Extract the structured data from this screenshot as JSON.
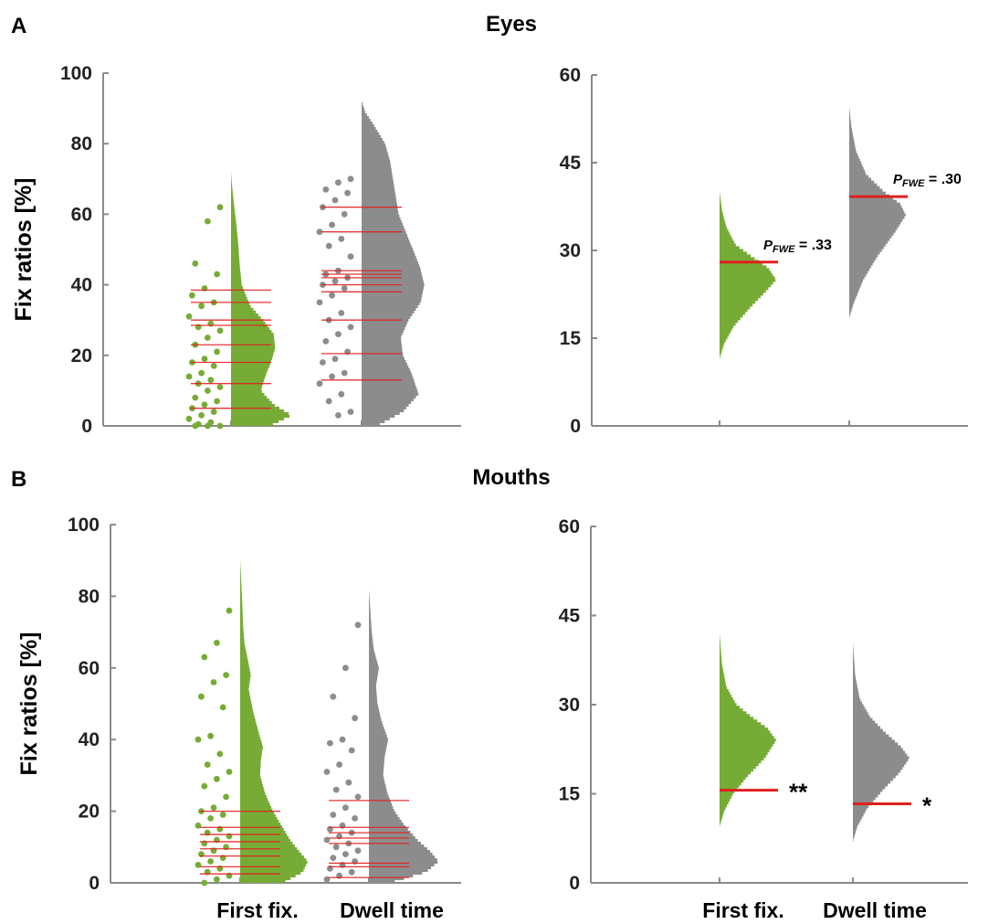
{
  "colors": {
    "green": "#76ac35",
    "gray": "#8c8c8c",
    "red": "#e0201f",
    "axis": "#8a8a8a"
  },
  "chart_data": [
    {
      "id": "A-left",
      "panel": "A",
      "title": "Eyes",
      "type": "raincloud",
      "ylabel": "Fix ratios [%]",
      "ylim": [
        0,
        100
      ],
      "yticks": [
        0,
        20,
        40,
        60,
        80,
        100
      ],
      "categories": [
        "First fix.",
        "Dwell time"
      ],
      "show_xticklabels": false,
      "series": [
        {
          "color": "green",
          "points": [
            62,
            58,
            46,
            43,
            39,
            37,
            35,
            34,
            31,
            29,
            28,
            27,
            25,
            23,
            21,
            19,
            18,
            17,
            15,
            14,
            13,
            12,
            11,
            10,
            8,
            7,
            6,
            5,
            4,
            3,
            2,
            1,
            0.5,
            0,
            0,
            0
          ],
          "lines": [
            38.5,
            35,
            30,
            28.5,
            23,
            18,
            12,
            5
          ],
          "density": [
            [
              0,
              0.55
            ],
            [
              3,
              0.85
            ],
            [
              6,
              0.6
            ],
            [
              10,
              0.42
            ],
            [
              14,
              0.48
            ],
            [
              18,
              0.56
            ],
            [
              22,
              0.62
            ],
            [
              26,
              0.6
            ],
            [
              30,
              0.45
            ],
            [
              34,
              0.27
            ],
            [
              40,
              0.15
            ],
            [
              46,
              0.12
            ],
            [
              52,
              0.1
            ],
            [
              58,
              0.07
            ],
            [
              64,
              0.035
            ],
            [
              69,
              0.01
            ],
            [
              72,
              0
            ]
          ]
        },
        {
          "color": "gray",
          "points": [
            70,
            69,
            67,
            66,
            64,
            62,
            60,
            57,
            55,
            53,
            51,
            48,
            44,
            43,
            42,
            41,
            40,
            39,
            37,
            35,
            32,
            30,
            28,
            26,
            24,
            21,
            19,
            18,
            15,
            14,
            12,
            9,
            7,
            4,
            3
          ],
          "lines": [
            62,
            55,
            44,
            43,
            42,
            40,
            38,
            30,
            20.5,
            13
          ],
          "density": [
            [
              0,
              0.22
            ],
            [
              4,
              0.58
            ],
            [
              9,
              0.8
            ],
            [
              15,
              0.7
            ],
            [
              20,
              0.58
            ],
            [
              25,
              0.55
            ],
            [
              30,
              0.66
            ],
            [
              35,
              0.83
            ],
            [
              40,
              0.88
            ],
            [
              45,
              0.82
            ],
            [
              50,
              0.72
            ],
            [
              55,
              0.62
            ],
            [
              60,
              0.52
            ],
            [
              65,
              0.48
            ],
            [
              70,
              0.44
            ],
            [
              75,
              0.4
            ],
            [
              80,
              0.33
            ],
            [
              85,
              0.18
            ],
            [
              89,
              0.05
            ],
            [
              92,
              0
            ]
          ]
        }
      ]
    },
    {
      "id": "A-right",
      "panel": "A",
      "type": "distribution",
      "ylim": [
        0,
        60
      ],
      "yticks": [
        0,
        15,
        30,
        45,
        60
      ],
      "categories": [
        "First fix.",
        "Dwell time"
      ],
      "show_xticklabels": false,
      "series": [
        {
          "color": "green",
          "observed": 28.0,
          "annotation": {
            "p_label": "P",
            "p_sub": "FWE",
            "p_value": "= .33"
          },
          "density": [
            [
              11.5,
              0
            ],
            [
              14,
              0.08
            ],
            [
              17,
              0.25
            ],
            [
              20,
              0.52
            ],
            [
              23,
              0.82
            ],
            [
              25,
              1.0
            ],
            [
              27,
              0.86
            ],
            [
              29,
              0.56
            ],
            [
              31,
              0.28
            ],
            [
              34,
              0.12
            ],
            [
              37,
              0.04
            ],
            [
              40,
              0
            ]
          ]
        },
        {
          "color": "gray",
          "observed": 39.2,
          "annotation": {
            "p_label": "P",
            "p_sub": "FWE",
            "p_value": "= .30"
          },
          "density": [
            [
              18.5,
              0
            ],
            [
              21,
              0.08
            ],
            [
              25,
              0.25
            ],
            [
              29,
              0.5
            ],
            [
              33,
              0.8
            ],
            [
              36,
              1.0
            ],
            [
              38,
              0.9
            ],
            [
              40,
              0.62
            ],
            [
              43,
              0.3
            ],
            [
              47,
              0.12
            ],
            [
              51,
              0.04
            ],
            [
              54.5,
              0
            ]
          ]
        }
      ]
    },
    {
      "id": "B-left",
      "panel": "B",
      "title": "Mouths",
      "type": "raincloud",
      "ylabel": "Fix ratios [%]",
      "ylim": [
        0,
        100
      ],
      "yticks": [
        0,
        20,
        40,
        60,
        80,
        100
      ],
      "categories": [
        "First fix.",
        "Dwell time"
      ],
      "show_xticklabels": true,
      "series": [
        {
          "color": "green",
          "points": [
            76,
            67,
            63,
            58,
            56,
            52,
            49,
            41,
            40,
            36,
            33,
            31,
            29,
            27,
            24,
            21,
            20,
            19,
            18,
            16,
            15,
            14,
            13,
            12,
            11,
            10,
            9,
            8,
            7,
            6,
            5,
            4,
            3,
            2,
            1,
            0
          ],
          "lines": [
            20,
            15.5,
            13.5,
            11.5,
            9.5,
            7.5,
            4.5,
            2.5
          ],
          "density": [
            [
              0,
              0.6
            ],
            [
              3,
              0.88
            ],
            [
              6,
              0.95
            ],
            [
              9,
              0.82
            ],
            [
              12,
              0.7
            ],
            [
              16,
              0.58
            ],
            [
              20,
              0.46
            ],
            [
              25,
              0.35
            ],
            [
              30,
              0.28
            ],
            [
              34,
              0.29
            ],
            [
              38,
              0.32
            ],
            [
              42,
              0.26
            ],
            [
              48,
              0.18
            ],
            [
              54,
              0.12
            ],
            [
              58,
              0.15
            ],
            [
              62,
              0.11
            ],
            [
              67,
              0.06
            ],
            [
              72,
              0.04
            ],
            [
              78,
              0.03
            ],
            [
              84,
              0.015
            ],
            [
              90,
              0
            ]
          ]
        },
        {
          "color": "gray",
          "points": [
            72,
            60,
            52,
            46,
            40,
            39,
            37,
            33,
            31,
            28,
            26,
            24,
            21,
            19,
            18,
            16,
            15,
            14,
            13,
            12,
            11,
            10,
            9,
            8,
            7,
            6,
            5,
            4,
            3,
            2,
            1
          ],
          "lines": [
            23,
            15.5,
            14,
            12.5,
            11,
            5.5,
            4.5,
            1.5
          ],
          "density": [
            [
              0,
              0.3
            ],
            [
              3,
              0.8
            ],
            [
              6,
              0.98
            ],
            [
              9,
              0.85
            ],
            [
              12,
              0.68
            ],
            [
              16,
              0.5
            ],
            [
              20,
              0.36
            ],
            [
              25,
              0.26
            ],
            [
              30,
              0.2
            ],
            [
              35,
              0.22
            ],
            [
              40,
              0.27
            ],
            [
              45,
              0.18
            ],
            [
              50,
              0.12
            ],
            [
              55,
              0.1
            ],
            [
              60,
              0.14
            ],
            [
              65,
              0.07
            ],
            [
              70,
              0.04
            ],
            [
              76,
              0.02
            ],
            [
              82,
              0
            ]
          ]
        }
      ]
    },
    {
      "id": "B-right",
      "panel": "B",
      "type": "distribution",
      "ylim": [
        0,
        60
      ],
      "yticks": [
        0,
        15,
        30,
        45,
        60
      ],
      "categories": [
        "First fix.",
        "Dwell time"
      ],
      "show_xticklabels": true,
      "series": [
        {
          "color": "green",
          "observed": 15.6,
          "annotation": {
            "stars": "**"
          },
          "density": [
            [
              9.5,
              0
            ],
            [
              12,
              0.08
            ],
            [
              15,
              0.24
            ],
            [
              18,
              0.5
            ],
            [
              21,
              0.8
            ],
            [
              24,
              1.0
            ],
            [
              26,
              0.85
            ],
            [
              28,
              0.56
            ],
            [
              30,
              0.3
            ],
            [
              33,
              0.12
            ],
            [
              37,
              0.04
            ],
            [
              42,
              0
            ]
          ]
        },
        {
          "color": "gray",
          "observed": 13.3,
          "annotation": {
            "stars": "*"
          },
          "density": [
            [
              7,
              0
            ],
            [
              9.5,
              0.08
            ],
            [
              12.5,
              0.25
            ],
            [
              15.5,
              0.52
            ],
            [
              18.5,
              0.82
            ],
            [
              21,
              1.0
            ],
            [
              23,
              0.84
            ],
            [
              25.5,
              0.55
            ],
            [
              28,
              0.3
            ],
            [
              31,
              0.12
            ],
            [
              35,
              0.04
            ],
            [
              40.5,
              0
            ]
          ]
        }
      ]
    }
  ]
}
